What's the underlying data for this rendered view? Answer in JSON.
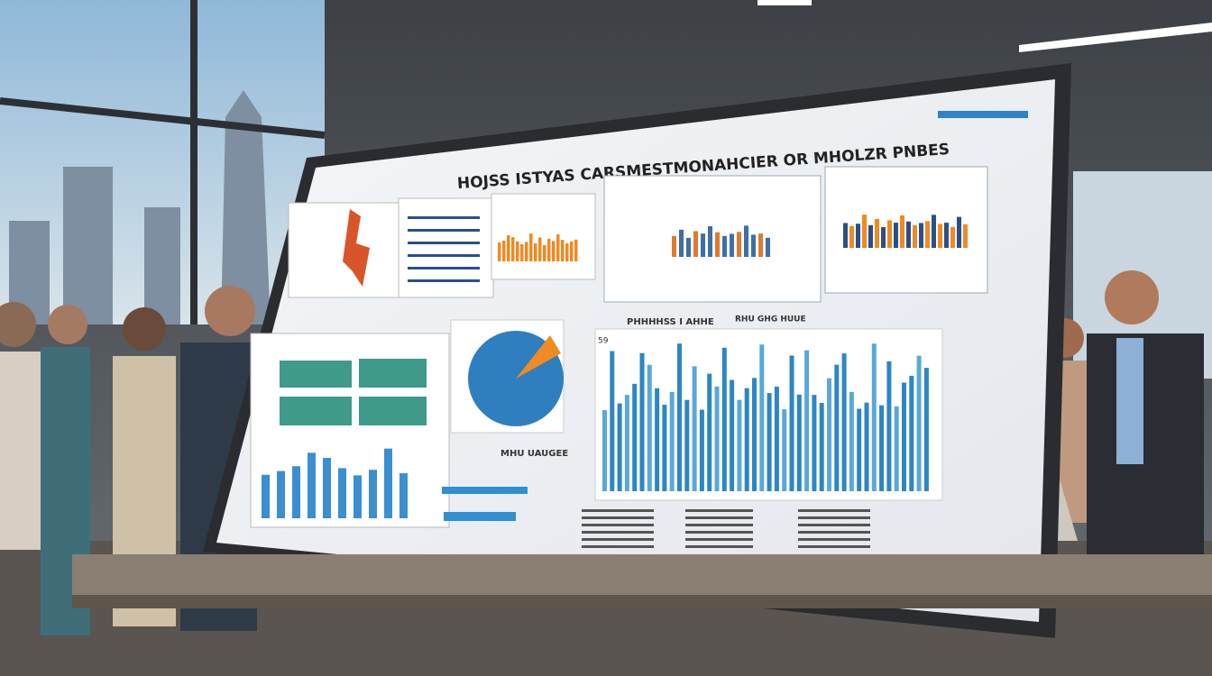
{
  "board": {
    "title": "HOJSS ISTYAS CARSMESTMONAHCIER  OR MHOLZR PNBES",
    "headings": [
      "PHHHHSS I AHHE",
      "MHU UAUGEE",
      "RHU GHG  HUUE"
    ],
    "axis_label": "59"
  }
}
